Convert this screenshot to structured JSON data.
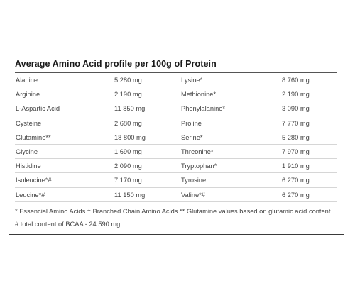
{
  "title": "Average Amino Acid profile per 100g of Protein",
  "rows": [
    {
      "name1": "Alanine",
      "value1": "5 280 mg",
      "name2": "Lysine*",
      "value2": "8 760 mg"
    },
    {
      "name1": "Arginine",
      "value1": "2 190 mg",
      "name2": "Methionine*",
      "value2": "2 190 mg"
    },
    {
      "name1": "L-Aspartic Acid",
      "value1": "11 850 mg",
      "name2": "Phenylalanine*",
      "value2": "3 090 mg"
    },
    {
      "name1": "Cysteine",
      "value1": "2 680 mg",
      "name2": "Proline",
      "value2": "7 770 mg"
    },
    {
      "name1": "Glutamine**",
      "value1": "18 800 mg",
      "name2": "Serine*",
      "value2": "5 280 mg"
    },
    {
      "name1": "Glycine",
      "value1": "1 690 mg",
      "name2": "Threonine*",
      "value2": "7 970 mg"
    },
    {
      "name1": "Histidine",
      "value1": "2 090 mg",
      "name2": "Tryptophan*",
      "value2": "1 910 mg"
    },
    {
      "name1": "Isoleucine*#",
      "value1": "7 170 mg",
      "name2": "Tyrosine",
      "value2": "6 270 mg"
    },
    {
      "name1": "Leucine*#",
      "value1": "11 150 mg",
      "name2": "Valine*#",
      "value2": "6 270 mg"
    }
  ],
  "footnote": "* Essencial Amino Acids † Branched Chain Amino Acids ** Glutamine values based on glutamic acid content. # total content of BCAA - 24 590 mg"
}
